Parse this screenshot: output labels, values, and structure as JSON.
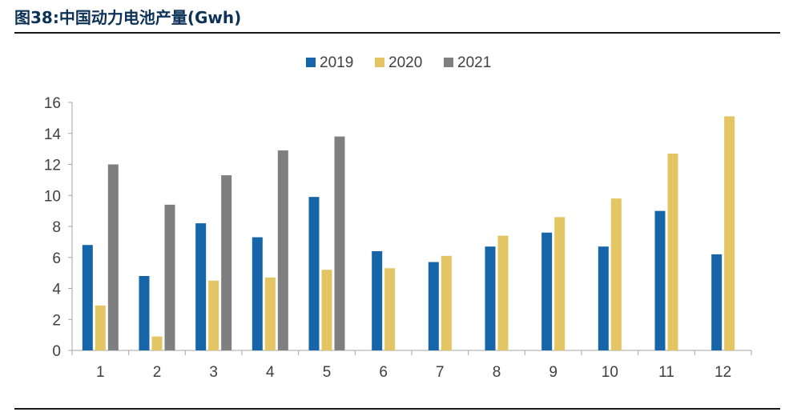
{
  "figure": {
    "title": "图38:中国动力电池产量(Gwh)"
  },
  "colors": {
    "title": "#0d3157",
    "axis": "#a6a6a6",
    "text": "#404040"
  },
  "chart_data": {
    "type": "bar",
    "title": "图38:中国动力电池产量(Gwh)",
    "xlabel": "",
    "ylabel": "",
    "categories": [
      "1",
      "2",
      "3",
      "4",
      "5",
      "6",
      "7",
      "8",
      "9",
      "10",
      "11",
      "12"
    ],
    "ylim": [
      0,
      16
    ],
    "yticks": [
      0,
      2,
      4,
      6,
      8,
      10,
      12,
      14,
      16
    ],
    "grid": false,
    "legend_position": "top-center",
    "series": [
      {
        "name": "2019",
        "color": "#1565a8",
        "values": [
          6.8,
          4.8,
          8.2,
          7.3,
          9.9,
          6.4,
          5.7,
          6.7,
          7.6,
          6.7,
          9.0,
          6.2
        ]
      },
      {
        "name": "2020",
        "color": "#e3c564",
        "values": [
          2.9,
          0.9,
          4.5,
          4.7,
          5.2,
          5.3,
          6.1,
          7.4,
          8.6,
          9.8,
          12.7,
          15.1
        ]
      },
      {
        "name": "2021",
        "color": "#7f7f7f",
        "values": [
          12.0,
          9.4,
          11.3,
          12.9,
          13.8,
          null,
          null,
          null,
          null,
          null,
          null,
          null
        ]
      }
    ]
  }
}
